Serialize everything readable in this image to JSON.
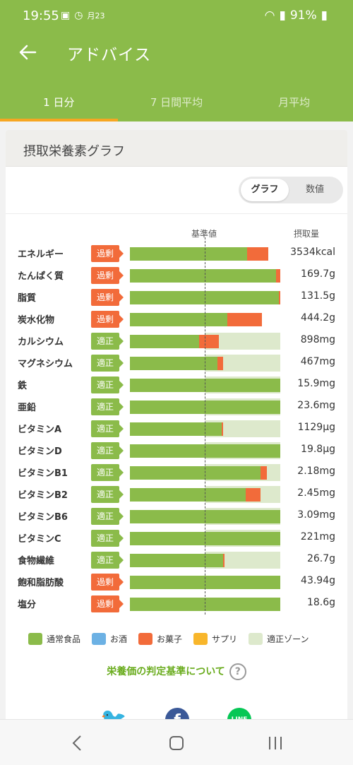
{
  "status_bar": {
    "time": "19:55",
    "date_badge": "月23",
    "battery": "91%"
  },
  "app_bar": {
    "title": "アドバイス"
  },
  "tabs": [
    {
      "label": "1 日分",
      "active": true
    },
    {
      "label": "7 日間平均",
      "active": false
    },
    {
      "label": "月平均",
      "active": false
    }
  ],
  "card": {
    "title": "摂取栄養素グラフ",
    "toggle": {
      "graph": "グラフ",
      "numeric": "数値",
      "selected": "グラフ"
    },
    "columns": {
      "standard": "基準値",
      "intake": "摂取量"
    }
  },
  "nutrients": [
    {
      "name": "エネルギー",
      "judge": "過剰",
      "status": "over",
      "food": 0.78,
      "snack": 0.14,
      "zone": false,
      "value": "3534kcal"
    },
    {
      "name": "たんぱく質",
      "judge": "過剰",
      "status": "over",
      "food": 0.97,
      "snack": 0.03,
      "zone": false,
      "value": "169.7g"
    },
    {
      "name": "脂質",
      "judge": "過剰",
      "status": "over",
      "food": 0.99,
      "snack": 0.01,
      "zone": false,
      "value": "131.5g"
    },
    {
      "name": "炭水化物",
      "judge": "過剰",
      "status": "over",
      "food": 0.65,
      "snack": 0.23,
      "zone": false,
      "value": "444.2g"
    },
    {
      "name": "カルシウム",
      "judge": "適正",
      "status": "ok",
      "food": 0.46,
      "snack": 0.13,
      "zone": true,
      "value": "898mg"
    },
    {
      "name": "マグネシウム",
      "judge": "適正",
      "status": "ok",
      "food": 0.58,
      "snack": 0.04,
      "zone": true,
      "value": "467mg"
    },
    {
      "name": "鉄",
      "judge": "適正",
      "status": "ok",
      "food": 1.0,
      "snack": 0.0,
      "zone": true,
      "value": "15.9mg"
    },
    {
      "name": "亜鉛",
      "judge": "適正",
      "status": "ok",
      "food": 1.0,
      "snack": 0.0,
      "zone": true,
      "value": "23.6mg"
    },
    {
      "name": "ビタミンA",
      "judge": "適正",
      "status": "ok",
      "food": 0.61,
      "snack": 0.01,
      "zone": true,
      "value": "1129μg"
    },
    {
      "name": "ビタミンD",
      "judge": "適正",
      "status": "ok",
      "food": 1.0,
      "snack": 0.0,
      "zone": true,
      "value": "19.8μg"
    },
    {
      "name": "ビタミンB1",
      "judge": "適正",
      "status": "ok",
      "food": 0.87,
      "snack": 0.04,
      "zone": true,
      "value": "2.18mg"
    },
    {
      "name": "ビタミンB2",
      "judge": "適正",
      "status": "ok",
      "food": 0.77,
      "snack": 0.1,
      "zone": true,
      "value": "2.45mg"
    },
    {
      "name": "ビタミンB6",
      "judge": "適正",
      "status": "ok",
      "food": 1.0,
      "snack": 0.0,
      "zone": true,
      "value": "3.09mg"
    },
    {
      "name": "ビタミンC",
      "judge": "適正",
      "status": "ok",
      "food": 1.0,
      "snack": 0.0,
      "zone": true,
      "value": "221mg"
    },
    {
      "name": "食物繊維",
      "judge": "適正",
      "status": "ok",
      "food": 0.62,
      "snack": 0.01,
      "zone": true,
      "value": "26.7g"
    },
    {
      "name": "飽和脂肪酸",
      "judge": "過剰",
      "status": "over",
      "food": 1.0,
      "snack": 0.0,
      "zone": false,
      "value": "43.94g"
    },
    {
      "name": "塩分",
      "judge": "過剰",
      "status": "over",
      "food": 1.0,
      "snack": 0.0,
      "zone": false,
      "value": "18.6g"
    }
  ],
  "legend": [
    {
      "label": "通常食品",
      "color": "#8bbb4a"
    },
    {
      "label": "お酒",
      "color": "#6cb1e4"
    },
    {
      "label": "お菓子",
      "color": "#f26b3a"
    },
    {
      "label": "サプリ",
      "color": "#f8b62b"
    },
    {
      "label": "適正ゾーン",
      "color": "#dde9cc"
    }
  ],
  "link": {
    "label": "栄養価の判定基準について",
    "help": "?"
  },
  "share": {
    "line_label": "LINE"
  },
  "colors": {
    "primary": "#8bbb4a",
    "accent": "#f6a623",
    "over": "#f26b3a"
  }
}
